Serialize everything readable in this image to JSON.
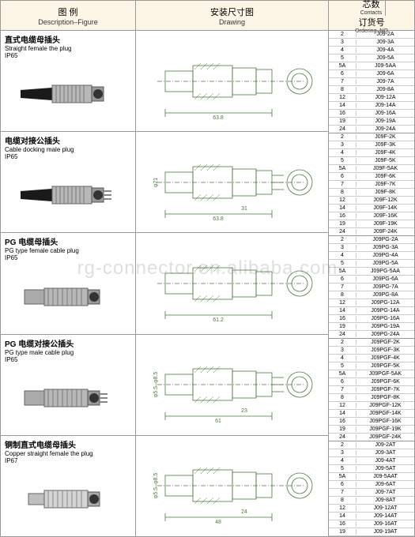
{
  "headers": {
    "figure": {
      "cn": "图 例",
      "en": "Description–Figure"
    },
    "drawing": {
      "cn": "安装尺寸图",
      "en": "Drawing"
    },
    "contacts": {
      "cn": "芯数",
      "en": "Contacts"
    },
    "ordering": {
      "cn": "订货号",
      "en": "Ordering–NO"
    }
  },
  "watermark": "rg-connector.en.alibaba.com",
  "products": [
    {
      "title_cn": "直式电缆母插头",
      "title_en": "Straight female the plug",
      "ip": "IP65",
      "rows": [
        {
          "c": "2",
          "o": "J09-2A"
        },
        {
          "c": "3",
          "o": "J09-3A"
        },
        {
          "c": "4",
          "o": "J09-4A"
        },
        {
          "c": "5",
          "o": "J09-5A"
        },
        {
          "c": "5A",
          "o": "J09-5AA"
        },
        {
          "c": "6",
          "o": "J09-6A"
        },
        {
          "c": "7",
          "o": "J09-7A"
        },
        {
          "c": "8",
          "o": "J09-8A"
        },
        {
          "c": "12",
          "o": "J09-12A"
        },
        {
          "c": "14",
          "o": "J09-14A"
        },
        {
          "c": "16",
          "o": "J09-16A"
        },
        {
          "c": "19",
          "o": "J09-19A"
        },
        {
          "c": "24",
          "o": "J09-24A"
        }
      ]
    },
    {
      "title_cn": "电缆对接公插头",
      "title_en": "Cable docking male plug",
      "ip": "IP65",
      "rows": [
        {
          "c": "2",
          "o": "J09F-2K"
        },
        {
          "c": "3",
          "o": "J09F-3K"
        },
        {
          "c": "4",
          "o": "J09F-4K"
        },
        {
          "c": "5",
          "o": "J09F-5K"
        },
        {
          "c": "5A",
          "o": "J09F-5AK"
        },
        {
          "c": "6",
          "o": "J09F-6K"
        },
        {
          "c": "7",
          "o": "J09F-7K"
        },
        {
          "c": "8",
          "o": "J09F-8K"
        },
        {
          "c": "12",
          "o": "J09F-12K"
        },
        {
          "c": "14",
          "o": "J09F-14K"
        },
        {
          "c": "16",
          "o": "J09F-16K"
        },
        {
          "c": "19",
          "o": "J09F-19K"
        },
        {
          "c": "24",
          "o": "J09F-24K"
        }
      ]
    },
    {
      "title_cn": "PG 电缆母插头",
      "title_en": "PG type female cable plug",
      "ip": "IP65",
      "rows": [
        {
          "c": "2",
          "o": "J09PG-2A"
        },
        {
          "c": "3",
          "o": "J09PG-3A"
        },
        {
          "c": "4",
          "o": "J09PG-4A"
        },
        {
          "c": "5",
          "o": "J09PG-5A"
        },
        {
          "c": "5A",
          "o": "J09PG-5AA"
        },
        {
          "c": "6",
          "o": "J09PG-6A"
        },
        {
          "c": "7",
          "o": "J09PG-7A"
        },
        {
          "c": "8",
          "o": "J09PG-8A"
        },
        {
          "c": "12",
          "o": "J09PG-12A"
        },
        {
          "c": "14",
          "o": "J09PG-14A"
        },
        {
          "c": "16",
          "o": "J09PG-16A"
        },
        {
          "c": "19",
          "o": "J09PG-19A"
        },
        {
          "c": "24",
          "o": "J09PG-24A"
        }
      ]
    },
    {
      "title_cn": "PG 电缆对接公插头",
      "title_en": "PG type male cable plug",
      "ip": "IP65",
      "rows": [
        {
          "c": "2",
          "o": "J09PGF-2K"
        },
        {
          "c": "3",
          "o": "J09PGF-3K"
        },
        {
          "c": "4",
          "o": "J09PGF-4K"
        },
        {
          "c": "5",
          "o": "J09PGF-5K"
        },
        {
          "c": "5A",
          "o": "J09PGF-5AK"
        },
        {
          "c": "6",
          "o": "J09PGF-6K"
        },
        {
          "c": "7",
          "o": "J09PGF-7K"
        },
        {
          "c": "8",
          "o": "J09PGF-8K"
        },
        {
          "c": "12",
          "o": "J09PGF-12K"
        },
        {
          "c": "14",
          "o": "J09PGF-14K"
        },
        {
          "c": "16",
          "o": "J09PGF-16K"
        },
        {
          "c": "19",
          "o": "J09PGF-19K"
        },
        {
          "c": "24",
          "o": "J09PGF-24K"
        }
      ]
    },
    {
      "title_cn": "铜制直式电缆母插头",
      "title_en": "Copper straight female the plug",
      "ip": "IP67",
      "rows": [
        {
          "c": "2",
          "o": "J09-2AT"
        },
        {
          "c": "3",
          "o": "J09-3AT"
        },
        {
          "c": "4",
          "o": "J09-4AT"
        },
        {
          "c": "5",
          "o": "J09-5AT"
        },
        {
          "c": "5A",
          "o": "J09-5AAT"
        },
        {
          "c": "6",
          "o": "J09-6AT"
        },
        {
          "c": "7",
          "o": "J09-7AT"
        },
        {
          "c": "8",
          "o": "J09-8AT"
        },
        {
          "c": "12",
          "o": "J09-12AT"
        },
        {
          "c": "14",
          "o": "J09-14AT"
        },
        {
          "c": "16",
          "o": "J09-16AT"
        },
        {
          "c": "19",
          "o": "J09-19AT"
        }
      ]
    }
  ],
  "drawings": {
    "dims1": {
      "len": "63.8",
      "d1": "φ21",
      "d2": "φ21"
    },
    "dims2": {
      "len": "63.8",
      "mid": "31",
      "d": "φ21"
    },
    "dims3": {
      "len": "61.2"
    },
    "dims4": {
      "len": "61",
      "mid": "23",
      "d": "φ5.5–φ8.5"
    },
    "dims5": {
      "len": "48",
      "mid": "24",
      "d": "φ5.5–φ8.5"
    }
  }
}
